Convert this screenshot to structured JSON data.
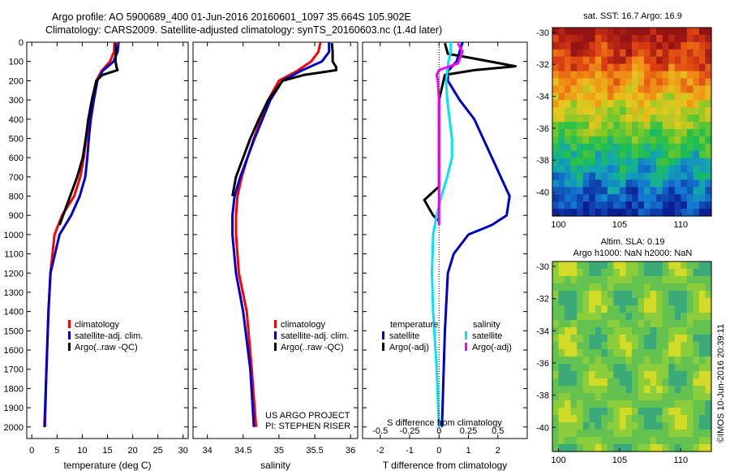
{
  "header": {
    "line1": "Argo profile: AO 5900689_400 01-Jun-2016 20160601_1097 35.664S 105.902E",
    "line2": "Climatology: CARS2009. Satellite-adjusted climatology: synTS_20160603.nc (1.4d later)"
  },
  "sst_panel": {
    "title": "sat. SST: 16.7 Argo: 16.9"
  },
  "sla_panel": {
    "title_line1": "Altim. SLA: 0.19",
    "title_line2": "Argo h1000: NaN h2000: NaN"
  },
  "stamp": "©IMOS 10-Jun-2016 20:39:11",
  "credit": {
    "line1": "US ARGO PROJECT",
    "line2": "PI: STEPHEN RISER"
  },
  "colors": {
    "climatology": "#ff0000",
    "satellite": "#0000cc",
    "argo": "#000000",
    "argo_adj_salinity": "#ff00ff",
    "satellite_salinity": "#00e5ee"
  },
  "chart_data": [
    {
      "type": "line",
      "xlabel": "temperature (deg C)",
      "xlim": [
        -1,
        31
      ],
      "ylim": [
        2060,
        0
      ],
      "xticks": [
        0,
        5,
        10,
        15,
        20,
        25,
        30
      ],
      "yticks": [
        0,
        100,
        200,
        300,
        400,
        500,
        600,
        700,
        800,
        900,
        1000,
        1100,
        1200,
        1300,
        1400,
        1500,
        1600,
        1700,
        1800,
        1900,
        2000
      ],
      "legend": [
        "climatology",
        "satellite-adj. clim.",
        "Argo(..raw -QC)"
      ],
      "series": [
        {
          "name": "climatology",
          "color": "#ff0000",
          "x": [
            16.4,
            16.3,
            15.5,
            13.8,
            12.8,
            12.0,
            11.3,
            10.8,
            10.3,
            9.6,
            8.4,
            6.0,
            4.5,
            3.7,
            3.3,
            2.9,
            2.6
          ],
          "y": [
            0,
            50,
            100,
            150,
            200,
            300,
            400,
            500,
            600,
            700,
            800,
            900,
            1000,
            1200,
            1400,
            1700,
            2000
          ]
        },
        {
          "name": "satellite-adj. clim.",
          "color": "#0000cc",
          "x": [
            17.2,
            17.0,
            16.2,
            14.0,
            13.0,
            12.3,
            11.7,
            11.3,
            11.0,
            10.6,
            9.5,
            7.8,
            5.5,
            3.7,
            3.3,
            2.9,
            2.5
          ],
          "y": [
            0,
            50,
            100,
            150,
            200,
            300,
            400,
            500,
            600,
            700,
            800,
            900,
            1000,
            1200,
            1400,
            1700,
            2000
          ]
        },
        {
          "name": "Argo(..raw -QC)",
          "color": "#000000",
          "x": [
            16.6,
            16.6,
            16.6,
            16.8,
            17.0,
            14.0,
            12.8,
            11.9,
            11.2,
            10.7,
            10.1,
            9.0,
            7.6,
            5.5
          ],
          "y": [
            5,
            50,
            100,
            130,
            145,
            170,
            200,
            300,
            400,
            500,
            600,
            700,
            800,
            950
          ]
        }
      ]
    },
    {
      "type": "line",
      "xlabel": "salinity",
      "xlim": [
        33.8,
        36.1
      ],
      "ylim": [
        2060,
        0
      ],
      "xticks": [
        34,
        34.5,
        35,
        35.5,
        36
      ],
      "legend": [
        "climatology",
        "satellite-adj. clim.",
        "Argo(..raw -QC)"
      ],
      "series": [
        {
          "name": "climatology",
          "color": "#ff0000",
          "x": [
            35.58,
            35.55,
            35.45,
            35.25,
            35.0,
            34.85,
            34.75,
            34.65,
            34.56,
            34.48,
            34.42,
            34.4,
            34.4,
            34.44,
            34.55,
            34.62,
            34.68
          ],
          "y": [
            0,
            50,
            100,
            150,
            200,
            300,
            400,
            500,
            600,
            700,
            800,
            900,
            1000,
            1200,
            1400,
            1700,
            2000
          ]
        },
        {
          "name": "satellite-adj. clim.",
          "color": "#0000cc",
          "x": [
            35.7,
            35.7,
            35.6,
            35.3,
            35.05,
            34.88,
            34.77,
            34.66,
            34.56,
            34.46,
            34.38,
            34.35,
            34.35,
            34.4,
            34.5,
            34.6,
            34.65
          ],
          "y": [
            0,
            50,
            100,
            150,
            200,
            300,
            400,
            500,
            600,
            700,
            800,
            900,
            1000,
            1200,
            1400,
            1700,
            2000
          ]
        },
        {
          "name": "Argo(..raw -QC)",
          "color": "#000000",
          "x": [
            35.74,
            35.75,
            35.75,
            35.8,
            35.8,
            35.35,
            35.05,
            34.85,
            34.72,
            34.6,
            34.5,
            34.4,
            34.35
          ],
          "y": [
            5,
            50,
            100,
            130,
            145,
            170,
            200,
            300,
            400,
            500,
            600,
            700,
            800
          ]
        }
      ]
    },
    {
      "type": "line",
      "xlabel": "T difference from climatology",
      "xlabel2": "S difference from climatology",
      "xlim": [
        -2.6,
        3.0
      ],
      "ylim": [
        2060,
        0
      ],
      "xticks": [
        -2,
        -1,
        0,
        1,
        2
      ],
      "x2ticks": [
        -0.5,
        -0.25,
        0,
        0.25,
        0.5
      ],
      "legend_title": [
        "temperature",
        "salinity"
      ],
      "legend": [
        "satellite",
        "Argo(-adj)",
        "satellite",
        "Argo(-adj)"
      ],
      "series": [
        {
          "name": "temperature satellite",
          "color": "#0000cc",
          "x": [
            0.8,
            0.7,
            0.6,
            0.3,
            0.3,
            0.7,
            1.2,
            1.5,
            1.8,
            2.1,
            2.4,
            2.3,
            1.8,
            1.0,
            0.5,
            0.3,
            0.2,
            0.1
          ],
          "y": [
            0,
            50,
            100,
            150,
            200,
            300,
            400,
            500,
            600,
            700,
            800,
            900,
            950,
            1000,
            1100,
            1200,
            1500,
            2000
          ]
        },
        {
          "name": "temperature Argo(-adj)",
          "color": "#000000",
          "x": [
            0.2,
            0.3,
            1.2,
            2.6,
            1.2,
            0.2,
            0.0,
            0.0,
            0.0,
            0.0,
            -0.5,
            -0.2,
            0.0
          ],
          "y": [
            5,
            60,
            85,
            125,
            145,
            170,
            300,
            500,
            700,
            750,
            820,
            900,
            930
          ]
        },
        {
          "name": "salinity satellite",
          "color": "#00e5ee",
          "x": [
            0.1,
            0.1,
            0.08,
            0.07,
            0.06,
            0.07,
            0.09,
            0.11,
            0.11,
            0.07,
            0.02,
            -0.02,
            -0.05,
            -0.06,
            -0.05,
            -0.02,
            0.0
          ],
          "y": [
            0,
            50,
            100,
            150,
            200,
            300,
            400,
            500,
            600,
            700,
            800,
            900,
            1000,
            1200,
            1400,
            1700,
            2000
          ]
        },
        {
          "name": "salinity Argo(-adj)",
          "color": "#ff00ff",
          "x": [
            0.16,
            0.2,
            0.16,
            0.0,
            -0.02,
            -0.01,
            0.0,
            0.0,
            0.0,
            0.0,
            0.0,
            0.0
          ],
          "y": [
            5,
            50,
            110,
            145,
            170,
            200,
            300,
            500,
            700,
            800,
            900,
            950
          ]
        }
      ]
    },
    {
      "type": "heatmap",
      "xlim": [
        99.5,
        112.5
      ],
      "ylim": [
        -41.5,
        -29.7
      ],
      "xticks": [
        100,
        105,
        110
      ],
      "yticks": [
        -30,
        -32,
        -34,
        -36,
        -38,
        -40
      ]
    },
    {
      "type": "heatmap",
      "xlim": [
        99.5,
        112.5
      ],
      "ylim": [
        -41.5,
        -29.7
      ],
      "xticks": [
        100,
        105,
        110
      ],
      "yticks": [
        -30,
        -32,
        -34,
        -36,
        -38,
        -40
      ]
    }
  ]
}
